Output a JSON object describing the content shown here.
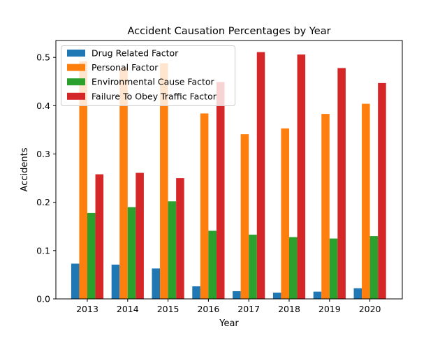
{
  "chart_data": {
    "type": "bar",
    "title": "Accident Causation Percentages by Year",
    "xlabel": "Year",
    "ylabel": "Accidents",
    "ylim": [
      0,
      0.535
    ],
    "yticks": [
      0.0,
      0.1,
      0.2,
      0.3,
      0.4,
      0.5
    ],
    "ytick_labels": [
      "0.0",
      "0.1",
      "0.2",
      "0.3",
      "0.4",
      "0.5"
    ],
    "grid": false,
    "legend_position": "top-left",
    "categories": [
      "2013",
      "2014",
      "2015",
      "2016",
      "2017",
      "2018",
      "2019",
      "2020"
    ],
    "series": [
      {
        "name": "Drug Related Factor",
        "color": "#1f77b4",
        "values": [
          0.073,
          0.071,
          0.063,
          0.026,
          0.016,
          0.013,
          0.015,
          0.022
        ]
      },
      {
        "name": "Personal Factor",
        "color": "#ff7f0e",
        "values": [
          0.492,
          0.479,
          0.488,
          0.384,
          0.341,
          0.353,
          0.383,
          0.404
        ]
      },
      {
        "name": "Environmental Cause Factor",
        "color": "#2ca02c",
        "values": [
          0.178,
          0.19,
          0.202,
          0.141,
          0.133,
          0.128,
          0.125,
          0.13
        ]
      },
      {
        "name": "Failure To Obey Traffic Factor",
        "color": "#d62728",
        "values": [
          0.258,
          0.261,
          0.25,
          0.449,
          0.511,
          0.506,
          0.478,
          0.447
        ]
      }
    ]
  }
}
